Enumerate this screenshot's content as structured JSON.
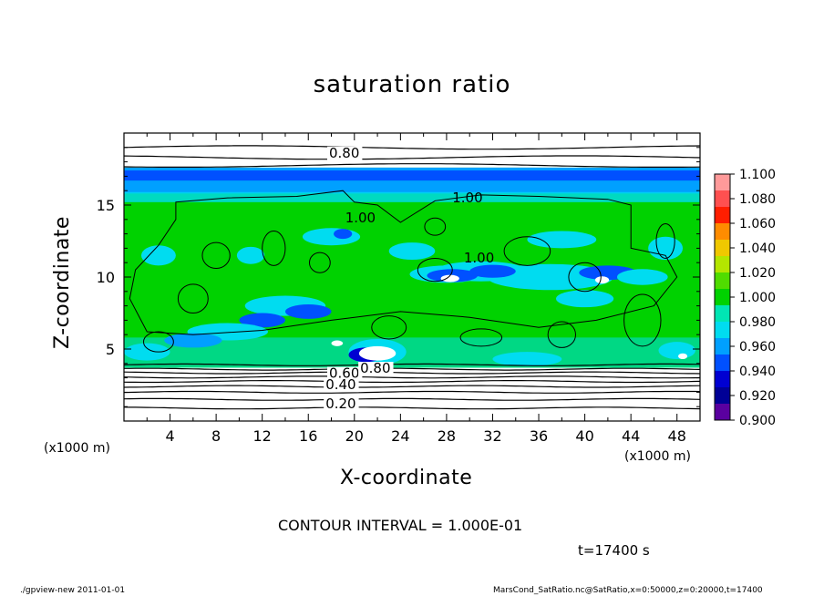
{
  "chart_data": {
    "type": "heatmap",
    "title": "saturation ratio",
    "xlabel": "X-coordinate",
    "ylabel": "Z-coordinate",
    "x_unit_label": "(x1000 m)",
    "y_unit_label": "(x1000 m)",
    "xlim": [
      0,
      50
    ],
    "ylim": [
      0,
      20
    ],
    "x_ticks": [
      "4",
      "8",
      "12",
      "16",
      "20",
      "24",
      "28",
      "32",
      "36",
      "40",
      "44",
      "48"
    ],
    "y_ticks": [
      "5",
      "10",
      "15"
    ],
    "colorbar": {
      "levels": [
        "1.100",
        "1.080",
        "1.060",
        "1.040",
        "1.020",
        "1.000",
        "0.980",
        "0.960",
        "0.940",
        "0.920",
        "0.900"
      ],
      "colors": [
        "#ff9a9a",
        "#ff5050",
        "#ff1e00",
        "#ff8c00",
        "#f0c800",
        "#b4e600",
        "#50dc00",
        "#00d200",
        "#00e6b4",
        "#00dcf0",
        "#00a0ff",
        "#0050ff",
        "#0000d2",
        "#000096",
        "#5a00a0"
      ]
    },
    "contour_labels": [
      "0.80",
      "1.00",
      "1.00",
      "1.00",
      "0.60",
      "0.80",
      "0.40",
      "0.20"
    ],
    "contour_interval": "CONTOUR INTERVAL = 1.000E-01",
    "time": "t=17400 s"
  },
  "footer": {
    "left": "./gpview-new   2011-01-01",
    "right": "MarsCond_SatRatio.nc@SatRatio,x=0:50000,z=0:20000,t=17400"
  }
}
